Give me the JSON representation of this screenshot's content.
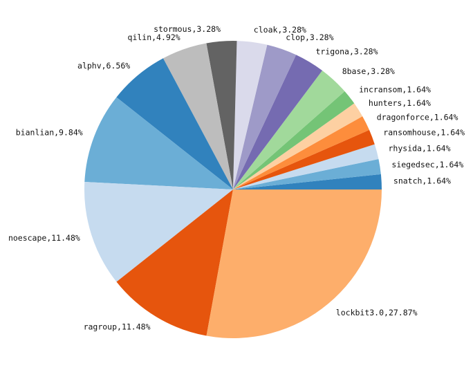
{
  "chart_data": {
    "type": "pie",
    "title": "",
    "start_angle_deg": 0,
    "direction": "counterclockwise",
    "slices": [
      {
        "label": "snatch",
        "pct_label": "1.64%",
        "value": 1.64,
        "color": "#3182bd"
      },
      {
        "label": "siegedsec",
        "pct_label": "1.64%",
        "value": 1.64,
        "color": "#6baed6"
      },
      {
        "label": "rhysida",
        "pct_label": "1.64%",
        "value": 1.64,
        "color": "#c6dbef"
      },
      {
        "label": "ransomhouse",
        "pct_label": "1.64%",
        "value": 1.64,
        "color": "#e6550d"
      },
      {
        "label": "dragonforce",
        "pct_label": "1.64%",
        "value": 1.64,
        "color": "#fd8d3c"
      },
      {
        "label": "hunters",
        "pct_label": "1.64%",
        "value": 1.64,
        "color": "#fdd0a2"
      },
      {
        "label": "incransom",
        "pct_label": "1.64%",
        "value": 1.64,
        "color": "#74c476"
      },
      {
        "label": "8base",
        "pct_label": "3.28%",
        "value": 3.28,
        "color": "#a1d99b"
      },
      {
        "label": "trigona",
        "pct_label": "3.28%",
        "value": 3.28,
        "color": "#756bb1"
      },
      {
        "label": "clop",
        "pct_label": "3.28%",
        "value": 3.28,
        "color": "#9e9ac8"
      },
      {
        "label": "cloak",
        "pct_label": "3.28%",
        "value": 3.28,
        "color": "#dadaeb"
      },
      {
        "label": "stormous",
        "pct_label": "3.28%",
        "value": 3.28,
        "color": "#636363"
      },
      {
        "label": "qilin",
        "pct_label": "4.92%",
        "value": 4.92,
        "color": "#bdbdbd"
      },
      {
        "label": "alphv",
        "pct_label": "6.56%",
        "value": 6.56,
        "color": "#3182bd"
      },
      {
        "label": "bianlian",
        "pct_label": "9.84%",
        "value": 9.84,
        "color": "#6baed6"
      },
      {
        "label": "noescape",
        "pct_label": "11.48%",
        "value": 11.48,
        "color": "#c6dbef"
      },
      {
        "label": "ragroup",
        "pct_label": "11.48%",
        "value": 11.48,
        "color": "#e6550d"
      },
      {
        "label": "lockbit3.0",
        "pct_label": "27.87%",
        "value": 27.87,
        "color": "#fdae6b"
      }
    ]
  }
}
